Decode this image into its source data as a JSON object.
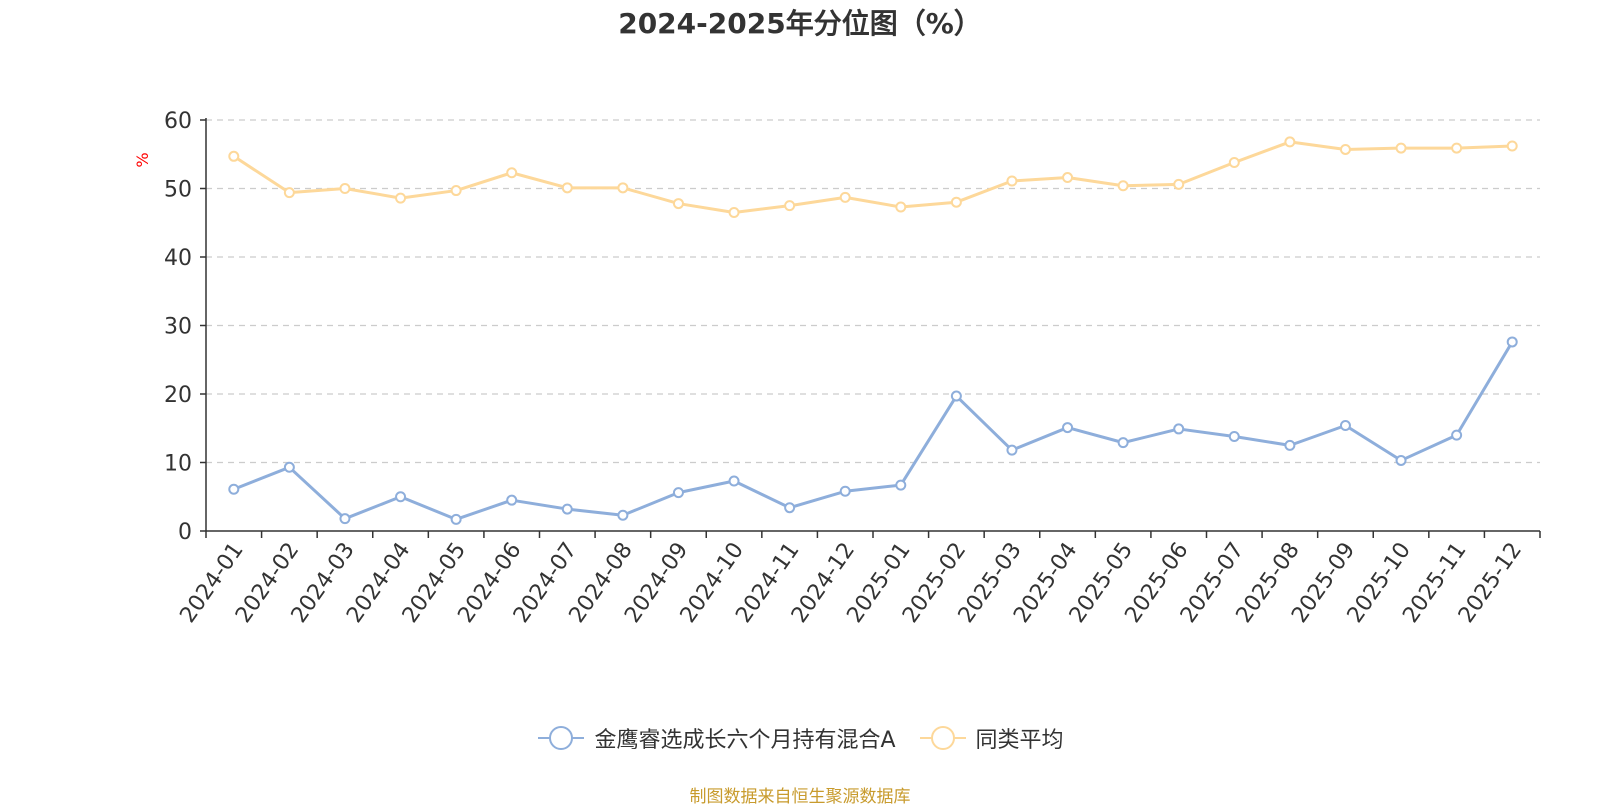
{
  "chart_data": {
    "type": "line",
    "title": "2024-2025年分位图（%）",
    "ylabel": "%",
    "xlabel": "",
    "ylim": [
      0,
      60
    ],
    "yticks": [
      0,
      10,
      20,
      30,
      40,
      50,
      60
    ],
    "grid": true,
    "legend_position": "bottom",
    "categories": [
      "2024-01",
      "2024-02",
      "2024-03",
      "2024-04",
      "2024-05",
      "2024-06",
      "2024-07",
      "2024-08",
      "2024-09",
      "2024-10",
      "2024-11",
      "2024-12",
      "2025-01",
      "2025-02",
      "2025-03",
      "2025-04",
      "2025-05",
      "2025-06",
      "2025-07",
      "2025-08",
      "2025-09",
      "2025-10",
      "2025-11",
      "2025-12"
    ],
    "series": [
      {
        "name": "金鹰睿选成长六个月持有混合A",
        "color": "#8eaedb",
        "values": [
          6.1,
          9.3,
          1.8,
          5.0,
          1.7,
          4.5,
          3.2,
          2.3,
          5.6,
          7.3,
          3.4,
          5.8,
          6.7,
          19.7,
          11.8,
          15.1,
          12.9,
          14.9,
          13.8,
          12.5,
          15.4,
          10.3,
          14.0,
          27.6
        ]
      },
      {
        "name": "同类平均",
        "color": "#fdd89a",
        "values": [
          54.7,
          49.4,
          50.0,
          48.6,
          49.7,
          52.3,
          50.1,
          50.1,
          47.8,
          46.5,
          47.5,
          48.7,
          47.3,
          48.0,
          51.1,
          51.6,
          50.4,
          50.6,
          53.8,
          56.8,
          55.7,
          55.9,
          55.9,
          56.2
        ]
      }
    ],
    "source_note": "制图数据来自恒生聚源数据库"
  }
}
